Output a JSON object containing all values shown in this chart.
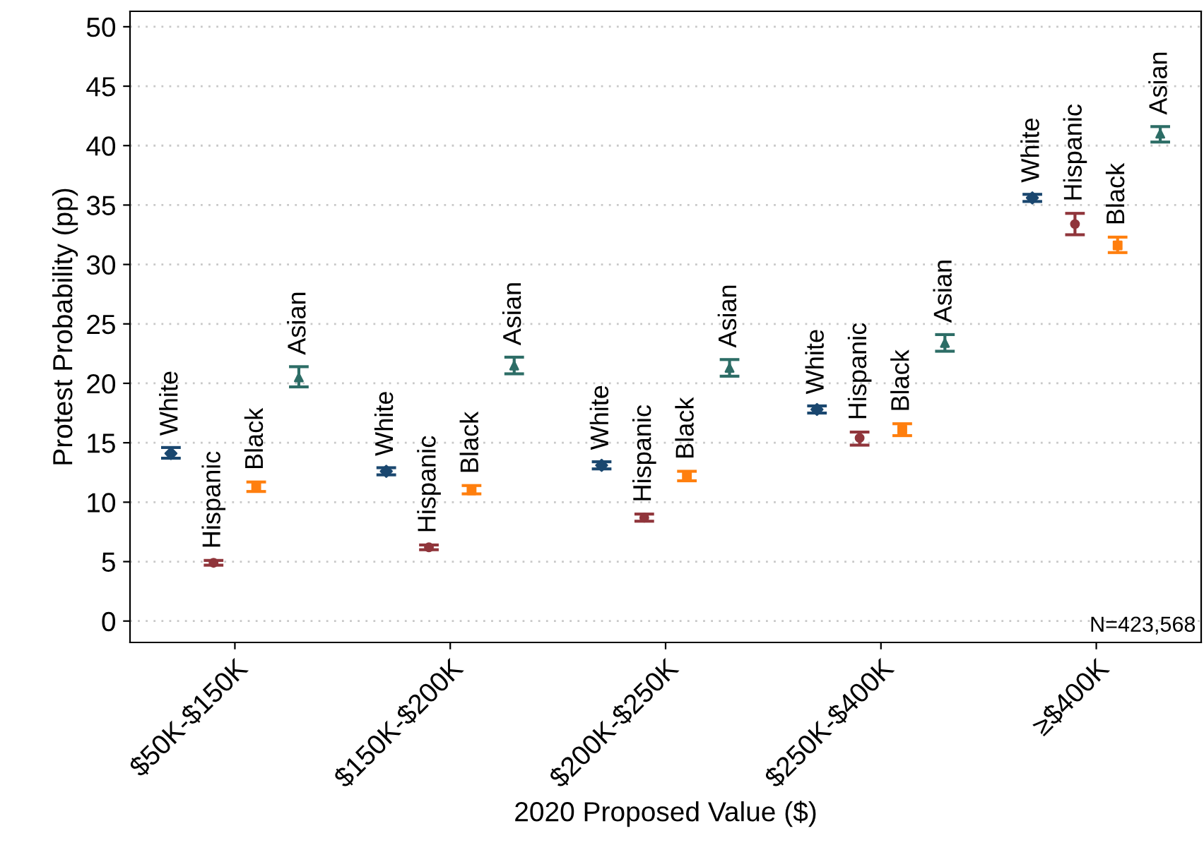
{
  "chart_data": {
    "type": "scatter",
    "xlabel": "2020 Proposed Value ($)",
    "ylabel": "Protest Probability (pp)",
    "categories": [
      "$50K-$150K",
      "$150K-$200K",
      "$200K-$250K",
      "$250K-$400K",
      "≥$400K"
    ],
    "series": [
      {
        "name": "White",
        "color": "#1a476f",
        "marker": "diamond",
        "values": [
          14.1,
          12.6,
          13.1,
          17.8,
          35.6
        ],
        "errors": [
          [
            13.7,
            14.6
          ],
          [
            12.3,
            12.9
          ],
          [
            12.8,
            13.4
          ],
          [
            17.5,
            18.1
          ],
          [
            35.3,
            35.9
          ]
        ]
      },
      {
        "name": "Hispanic",
        "color": "#90353b",
        "marker": "circle",
        "values": [
          4.9,
          6.2,
          8.7,
          15.4,
          33.4
        ],
        "errors": [
          [
            4.7,
            5.1
          ],
          [
            6.0,
            6.4
          ],
          [
            8.4,
            9.0
          ],
          [
            14.8,
            15.9
          ],
          [
            32.5,
            34.3
          ]
        ]
      },
      {
        "name": "Black",
        "color": "#ff7f0e",
        "marker": "square",
        "values": [
          11.3,
          11.0,
          12.2,
          16.1,
          31.6
        ],
        "errors": [
          [
            10.9,
            11.7
          ],
          [
            10.7,
            11.4
          ],
          [
            11.8,
            12.6
          ],
          [
            15.6,
            16.6
          ],
          [
            31.0,
            32.3
          ]
        ]
      },
      {
        "name": "Asian",
        "color": "#2d6d66",
        "marker": "triangle",
        "values": [
          20.5,
          21.5,
          21.3,
          23.4,
          41.0
        ],
        "errors": [
          [
            19.7,
            21.4
          ],
          [
            20.8,
            22.2
          ],
          [
            20.6,
            22.0
          ],
          [
            22.7,
            24.1
          ],
          [
            40.3,
            41.6
          ]
        ]
      }
    ],
    "ylim": [
      -1.8,
      51.3
    ],
    "yticks": [
      0,
      5,
      10,
      15,
      20,
      25,
      30,
      35,
      40,
      45,
      50
    ],
    "grid": "y",
    "annotations": [
      "N=423,568"
    ]
  }
}
